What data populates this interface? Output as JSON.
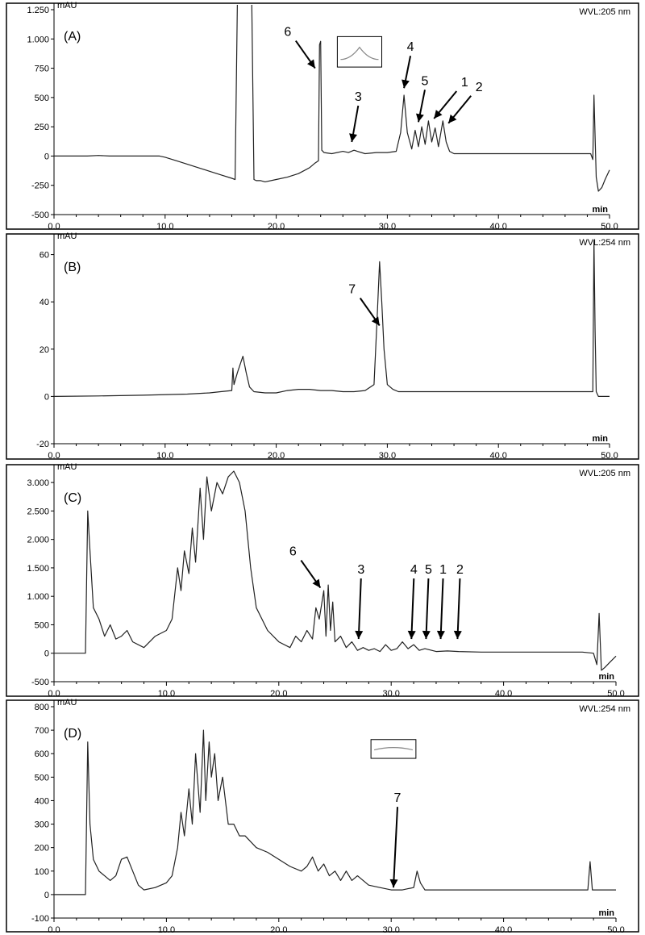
{
  "chart_data": [
    {
      "type": "line",
      "panel_label": "(A)",
      "ylabel": "mAU",
      "xunit": "min",
      "detector": "WVL:205 nm",
      "xlim": [
        0,
        50
      ],
      "ylim": [
        -500,
        1250
      ],
      "x_ticks": [
        "0.0",
        "10.0",
        "20.0",
        "30.0",
        "40.0",
        "50.0"
      ],
      "y_ticks": [
        {
          "value": -500,
          "label": "-500"
        },
        {
          "value": -250,
          "label": "-250"
        },
        {
          "value": 0,
          "label": "0"
        },
        {
          "value": 250,
          "label": "250"
        },
        {
          "value": 500,
          "label": "500"
        },
        {
          "value": 750,
          "label": "750"
        },
        {
          "value": 1000,
          "label": "1.000"
        },
        {
          "value": 1250,
          "label": "1.250"
        }
      ],
      "x": [
        0,
        1,
        2,
        3,
        4,
        5,
        6,
        7,
        8,
        9,
        9.5,
        10,
        11,
        12,
        13,
        14,
        15,
        16,
        16.3,
        16.5,
        16.6,
        16.8,
        17,
        17.5,
        17.8,
        18,
        18.2,
        18.6,
        19,
        20,
        21,
        22,
        23,
        23.5,
        23.8,
        23.9,
        24,
        24.1,
        24.3,
        25,
        26,
        26.5,
        27,
        27.3,
        28,
        29,
        30,
        30.8,
        31.2,
        31.5,
        31.8,
        32.2,
        32.5,
        32.8,
        33.1,
        33.4,
        33.7,
        34,
        34.3,
        34.6,
        35,
        35.3,
        35.6,
        36,
        36.5,
        37,
        38,
        40,
        42,
        44,
        46,
        47,
        48,
        48.3,
        48.5,
        48.6,
        48.8,
        49,
        49.3,
        49.6,
        50
      ],
      "y": [
        0,
        0,
        0,
        0,
        5,
        0,
        0,
        0,
        0,
        0,
        0,
        -10,
        -40,
        -70,
        -100,
        -130,
        -160,
        -190,
        -200,
        1300,
        1300,
        1300,
        1300,
        1300,
        1300,
        -200,
        -210,
        -210,
        -220,
        -200,
        -180,
        -150,
        -100,
        -60,
        -40,
        950,
        980,
        50,
        30,
        20,
        40,
        30,
        50,
        40,
        20,
        30,
        30,
        40,
        200,
        520,
        200,
        60,
        220,
        80,
        250,
        100,
        300,
        120,
        240,
        80,
        300,
        120,
        40,
        20,
        20,
        20,
        20,
        20,
        20,
        20,
        20,
        20,
        20,
        20,
        -30,
        520,
        -180,
        -300,
        -270,
        -200,
        -120
      ],
      "annotations": [
        {
          "label": "6",
          "x": 23.5,
          "y": 750
        },
        {
          "label": "3",
          "x": 26.8,
          "y": 120
        },
        {
          "label": "4",
          "x": 31.5,
          "y": 580
        },
        {
          "label": "5",
          "x": 32.8,
          "y": 290
        },
        {
          "label": "1",
          "x": 34.2,
          "y": 320
        },
        {
          "label": "2",
          "x": 35.5,
          "y": 280
        }
      ],
      "inset": {
        "x0": 25.5,
        "x1": 29.5,
        "y0": 1020,
        "y1": 760,
        "shape": "peak"
      }
    },
    {
      "type": "line",
      "panel_label": "(B)",
      "ylabel": "mAU",
      "xunit": "min",
      "detector": "WVL:254 nm",
      "xlim": [
        0,
        50
      ],
      "ylim": [
        -20,
        66
      ],
      "x_ticks": [
        "0.0",
        "10.0",
        "20.0",
        "30.0",
        "40.0",
        "50.0"
      ],
      "y_ticks": [
        {
          "value": -20,
          "label": "-20"
        },
        {
          "value": 0,
          "label": "0"
        },
        {
          "value": 20,
          "label": "20"
        },
        {
          "value": 40,
          "label": "40"
        },
        {
          "value": 60,
          "label": "60"
        }
      ],
      "x": [
        0,
        4,
        8,
        12,
        14,
        15,
        16,
        16.1,
        16.2,
        16.5,
        17,
        17.3,
        17.6,
        18,
        19,
        20,
        21,
        22,
        23,
        24,
        25,
        26,
        27,
        28,
        28.8,
        29.1,
        29.3,
        29.5,
        29.7,
        30,
        30.5,
        31,
        32,
        34,
        36,
        38,
        40,
        42,
        44,
        46,
        47,
        48,
        48.3,
        48.5,
        48.6,
        48.7,
        48.8,
        49,
        50
      ],
      "y": [
        0,
        0.2,
        0.5,
        1,
        1.5,
        2,
        2.5,
        12,
        5,
        10,
        17,
        10,
        4,
        2,
        1.5,
        1.5,
        2.5,
        3,
        3,
        2.5,
        2.5,
        2,
        2,
        2.5,
        5,
        35,
        57,
        40,
        20,
        5,
        3,
        2,
        2,
        2,
        2,
        2,
        2,
        2,
        2,
        2,
        2,
        2,
        2,
        2,
        66,
        28,
        2,
        0,
        0
      ],
      "annotations": [
        {
          "label": "7",
          "x": 29.3,
          "y": 30
        }
      ]
    },
    {
      "type": "line",
      "panel_label": "(C)",
      "ylabel": "mAU",
      "xunit": "min",
      "detector": "WVL:205 nm",
      "xlim": [
        0,
        50
      ],
      "ylim": [
        -500,
        3200
      ],
      "x_ticks": [
        "0.0",
        "10.0",
        "20.0",
        "30.0",
        "40.0",
        "50.0"
      ],
      "y_ticks": [
        {
          "value": -500,
          "label": "-500"
        },
        {
          "value": 0,
          "label": "0"
        },
        {
          "value": 500,
          "label": "500"
        },
        {
          "value": 1000,
          "label": "1.000"
        },
        {
          "value": 1500,
          "label": "1.500"
        },
        {
          "value": 2000,
          "label": "2.000"
        },
        {
          "value": 2500,
          "label": "2.500"
        },
        {
          "value": 3000,
          "label": "3.000"
        }
      ],
      "x": [
        0,
        1,
        2,
        2.8,
        3,
        3.2,
        3.5,
        4,
        4.5,
        5,
        5.5,
        6,
        6.5,
        7,
        8,
        9,
        10,
        10.5,
        11,
        11.3,
        11.6,
        12,
        12.3,
        12.6,
        13,
        13.3,
        13.6,
        14,
        14.5,
        15,
        15.5,
        16,
        16.5,
        17,
        17.5,
        18,
        19,
        20,
        21,
        21.5,
        22,
        22.5,
        23,
        23.3,
        23.6,
        24,
        24.2,
        24.4,
        24.6,
        24.8,
        25,
        25.5,
        26,
        26.5,
        27,
        27.5,
        28,
        28.5,
        29,
        29.5,
        30,
        30.5,
        31,
        31.5,
        32,
        32.5,
        33,
        34,
        35,
        36,
        38,
        40,
        42,
        44,
        46,
        47,
        48,
        48.3,
        48.5,
        48.7,
        49,
        49.5,
        50
      ],
      "y": [
        0,
        0,
        0,
        0,
        2500,
        1800,
        800,
        600,
        300,
        500,
        250,
        300,
        400,
        200,
        100,
        300,
        400,
        600,
        1500,
        1100,
        1800,
        1400,
        2200,
        1600,
        2900,
        2000,
        3100,
        2500,
        3000,
        2800,
        3100,
        3200,
        3000,
        2500,
        1500,
        800,
        400,
        200,
        100,
        300,
        200,
        400,
        250,
        800,
        600,
        1100,
        300,
        1200,
        400,
        900,
        200,
        300,
        100,
        200,
        50,
        100,
        50,
        80,
        30,
        150,
        50,
        80,
        200,
        80,
        150,
        50,
        80,
        30,
        40,
        30,
        20,
        20,
        20,
        20,
        20,
        20,
        0,
        -200,
        700,
        -300,
        -250,
        -150,
        -50
      ],
      "annotations": [
        {
          "label": "6",
          "x": 23.7,
          "y": 1150
        },
        {
          "label": "3",
          "x": 27.1,
          "y": 250
        },
        {
          "label": "4",
          "x": 31.8,
          "y": 250
        },
        {
          "label": "5",
          "x": 33.1,
          "y": 250
        },
        {
          "label": "1",
          "x": 34.4,
          "y": 250
        },
        {
          "label": "2",
          "x": 35.9,
          "y": 250
        }
      ]
    },
    {
      "type": "line",
      "panel_label": "(D)",
      "ylabel": "mAU",
      "xunit": "min",
      "detector": "WVL:254 nm",
      "xlim": [
        0,
        50
      ],
      "ylim": [
        -100,
        800
      ],
      "x_ticks": [
        "0.0",
        "10.0",
        "20.0",
        "30.0",
        "40.0",
        "50.0"
      ],
      "y_ticks": [
        {
          "value": -100,
          "label": "-100"
        },
        {
          "value": 0,
          "label": "0"
        },
        {
          "value": 100,
          "label": "100"
        },
        {
          "value": 200,
          "label": "200"
        },
        {
          "value": 300,
          "label": "300"
        },
        {
          "value": 400,
          "label": "400"
        },
        {
          "value": 500,
          "label": "500"
        },
        {
          "value": 600,
          "label": "600"
        },
        {
          "value": 700,
          "label": "700"
        },
        {
          "value": 800,
          "label": "800"
        }
      ],
      "x": [
        0,
        1,
        2,
        2.8,
        3,
        3.2,
        3.5,
        4,
        4.5,
        5,
        5.5,
        6,
        6.5,
        7,
        7.5,
        8,
        9,
        10,
        10.5,
        11,
        11.3,
        11.6,
        12,
        12.3,
        12.6,
        13,
        13.3,
        13.5,
        13.8,
        14,
        14.3,
        14.6,
        15,
        15.5,
        16,
        16.5,
        17,
        18,
        19,
        20,
        21,
        22,
        22.5,
        23,
        23.5,
        24,
        24.5,
        25,
        25.5,
        26,
        26.5,
        27,
        28,
        29,
        30,
        31,
        31.5,
        32,
        32.3,
        32.6,
        33,
        34,
        36,
        38,
        40,
        42,
        44,
        46,
        47,
        47.5,
        47.7,
        47.9,
        48.5,
        49,
        50
      ],
      "y": [
        0,
        0,
        0,
        0,
        650,
        300,
        150,
        100,
        80,
        60,
        80,
        150,
        160,
        100,
        40,
        20,
        30,
        50,
        80,
        200,
        350,
        250,
        450,
        300,
        600,
        350,
        700,
        400,
        650,
        500,
        600,
        400,
        500,
        300,
        300,
        250,
        250,
        200,
        180,
        150,
        120,
        100,
        120,
        160,
        100,
        130,
        80,
        100,
        60,
        100,
        60,
        80,
        40,
        30,
        20,
        20,
        25,
        30,
        100,
        50,
        20,
        20,
        20,
        20,
        20,
        20,
        20,
        20,
        20,
        20,
        140,
        20,
        20,
        20,
        20
      ],
      "annotations": [
        {
          "label": "7",
          "x": 30.2,
          "y": 30
        }
      ],
      "inset": {
        "x0": 28.2,
        "x1": 32.2,
        "y0": 660,
        "y1": 580,
        "shape": "flat"
      }
    }
  ]
}
